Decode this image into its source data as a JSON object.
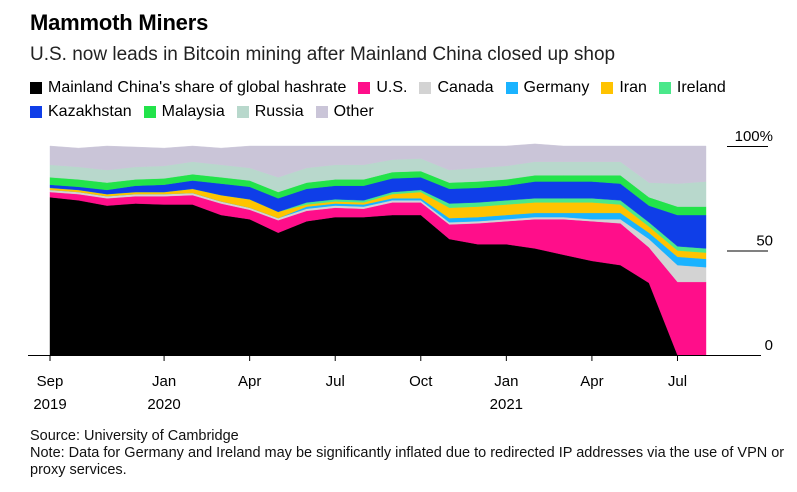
{
  "header": {
    "title": "Mammoth Miners",
    "subtitle": "U.S. now leads in Bitcoin mining after Mainland China closed up shop"
  },
  "footer": {
    "source": "Source: University of Cambridge",
    "note": "Note: Data for Germany and Ireland may be significantly inflated due to redirected IP addresses via the use of VPN or proxy services."
  },
  "chart_data": {
    "type": "area",
    "stacked": true,
    "x": [
      "2019-09",
      "2019-10",
      "2019-11",
      "2019-12",
      "2020-01",
      "2020-02",
      "2020-03",
      "2020-04",
      "2020-05",
      "2020-06",
      "2020-07",
      "2020-08",
      "2020-09",
      "2020-10",
      "2020-11",
      "2020-12",
      "2021-01",
      "2021-02",
      "2021-03",
      "2021-04",
      "2021-05",
      "2021-06",
      "2021-07",
      "2021-08"
    ],
    "x_ticks": [
      {
        "x": "2019-09",
        "label": "Sep",
        "sublabel": "2019"
      },
      {
        "x": "2020-01",
        "label": "Jan",
        "sublabel": "2020"
      },
      {
        "x": "2020-04",
        "label": "Apr",
        "sublabel": ""
      },
      {
        "x": "2020-07",
        "label": "Jul",
        "sublabel": ""
      },
      {
        "x": "2020-10",
        "label": "Oct",
        "sublabel": ""
      },
      {
        "x": "2021-01",
        "label": "Jan",
        "sublabel": "2021"
      },
      {
        "x": "2021-04",
        "label": "Apr",
        "sublabel": ""
      },
      {
        "x": "2021-07",
        "label": "Jul",
        "sublabel": ""
      }
    ],
    "y_ticks": [
      {
        "value": 100,
        "label": "100%"
      },
      {
        "value": 50,
        "label": "50"
      },
      {
        "value": 0,
        "label": "0"
      }
    ],
    "ylim": [
      0,
      100
    ],
    "series": [
      {
        "name": "Mainland China's share of global hashrate",
        "color": "#000000",
        "values": [
          75.5,
          74,
          71.5,
          72.5,
          72,
          72,
          67,
          65,
          58.5,
          64,
          66,
          66,
          67,
          67,
          55.5,
          53,
          53,
          51,
          48,
          45,
          43,
          34.5,
          0,
          0
        ]
      },
      {
        "name": "U.S.",
        "color": "#ff0e8a",
        "values": [
          2.5,
          3,
          3.5,
          3.5,
          4,
          4.5,
          5.5,
          4.5,
          6,
          5,
          4.5,
          4,
          6,
          6,
          7,
          10,
          11,
          14,
          17,
          19,
          20,
          17,
          35,
          35
        ]
      },
      {
        "name": "Canada",
        "color": "#d3d3d3",
        "values": [
          1,
          1,
          1,
          1,
          1,
          1,
          1,
          1,
          1,
          1,
          1,
          1,
          1,
          1,
          1,
          1,
          1,
          1,
          1,
          1,
          2,
          4,
          8,
          7
        ]
      },
      {
        "name": "Germany",
        "color": "#1ab3ff",
        "values": [
          0,
          0,
          0,
          0,
          0,
          0,
          0,
          0,
          0,
          1,
          1,
          1,
          1,
          1,
          2,
          2,
          2,
          2,
          2,
          3,
          3,
          3,
          4,
          4
        ]
      },
      {
        "name": "Iran",
        "color": "#ffc300",
        "values": [
          1,
          1,
          1,
          1,
          1,
          2,
          3,
          4,
          3,
          1,
          1,
          1,
          2,
          3,
          5,
          5,
          5,
          5,
          5,
          5,
          4,
          3,
          3,
          3
        ]
      },
      {
        "name": "Ireland",
        "color": "#4ae88a",
        "values": [
          0,
          0,
          0,
          0,
          0,
          0,
          0,
          0,
          0,
          1,
          1,
          1,
          1,
          1,
          2,
          2,
          2,
          2,
          2,
          2,
          2,
          2,
          2,
          2
        ]
      },
      {
        "name": "Kazakhstan",
        "color": "#0f3ee8",
        "values": [
          1.5,
          1.5,
          2,
          3,
          3.5,
          4,
          5.5,
          6,
          6.5,
          6.5,
          6.5,
          7,
          6.5,
          6,
          7,
          7,
          7,
          8,
          8,
          8,
          8,
          8,
          15,
          16
        ]
      },
      {
        "name": "Malaysia",
        "color": "#22e34a",
        "values": [
          3.5,
          3.5,
          3.5,
          3,
          3,
          3,
          3,
          3,
          3,
          3,
          3,
          3,
          3,
          3,
          3,
          3,
          3,
          3,
          3,
          3,
          4,
          4,
          4,
          4
        ]
      },
      {
        "name": "Russia",
        "color": "#b8d8cc",
        "values": [
          6,
          6,
          6,
          6,
          6,
          6,
          6,
          6,
          7,
          7,
          7,
          7,
          6,
          6,
          6,
          6.5,
          6.5,
          6.5,
          6.5,
          6.5,
          6.5,
          7,
          11,
          12
        ]
      },
      {
        "name": "Other",
        "color": "#cac5d8",
        "values": [
          9,
          9,
          11.5,
          9.5,
          8.5,
          7.5,
          8,
          10.5,
          15,
          10.5,
          9,
          9,
          6.5,
          6,
          11.5,
          10.5,
          9.5,
          8.5,
          7.5,
          7.5,
          7.5,
          17.5,
          18,
          17
        ]
      }
    ]
  }
}
